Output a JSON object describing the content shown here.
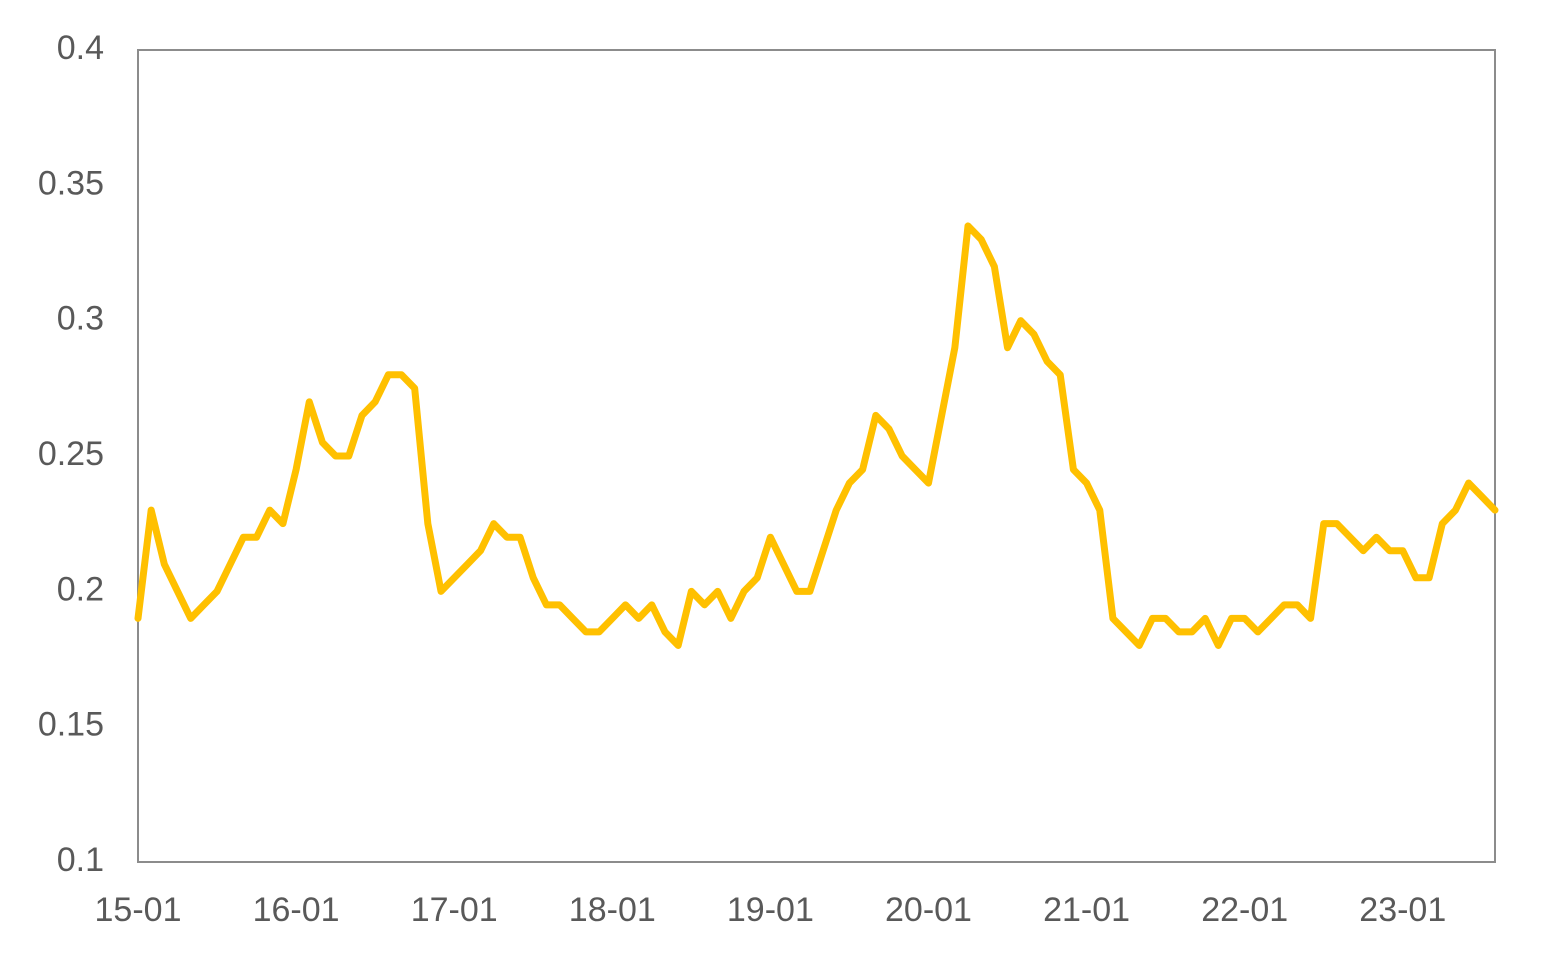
{
  "chart_data": {
    "type": "line",
    "categories": [
      "15-01",
      null,
      null,
      null,
      null,
      null,
      null,
      null,
      null,
      null,
      null,
      null,
      "16-01",
      null,
      null,
      null,
      null,
      null,
      null,
      null,
      null,
      null,
      null,
      null,
      "17-01",
      null,
      null,
      null,
      null,
      null,
      null,
      null,
      null,
      null,
      null,
      null,
      "18-01",
      null,
      null,
      null,
      null,
      null,
      null,
      null,
      null,
      null,
      null,
      null,
      "19-01",
      null,
      null,
      null,
      null,
      null,
      null,
      null,
      null,
      null,
      null,
      null,
      "20-01",
      null,
      null,
      null,
      null,
      null,
      null,
      null,
      null,
      null,
      null,
      null,
      "21-01",
      null,
      null,
      null,
      null,
      null,
      null,
      null,
      null,
      null,
      null,
      null,
      "22-01",
      null,
      null,
      null,
      null,
      null,
      null,
      null,
      null,
      null,
      null,
      null,
      "23-01",
      null,
      null,
      null,
      null,
      null,
      null,
      null
    ],
    "values": [
      0.19,
      0.23,
      0.21,
      0.2,
      0.19,
      0.195,
      0.2,
      0.21,
      0.22,
      0.22,
      0.23,
      0.225,
      0.245,
      0.27,
      0.255,
      0.25,
      0.25,
      0.265,
      0.27,
      0.28,
      0.28,
      0.275,
      0.225,
      0.2,
      0.205,
      0.21,
      0.215,
      0.225,
      0.22,
      0.22,
      0.205,
      0.195,
      0.195,
      0.19,
      0.185,
      0.185,
      0.19,
      0.195,
      0.19,
      0.195,
      0.185,
      0.18,
      0.2,
      0.195,
      0.2,
      0.19,
      0.2,
      0.205,
      0.22,
      0.21,
      0.2,
      0.2,
      0.215,
      0.23,
      0.24,
      0.245,
      0.265,
      0.26,
      0.25,
      0.245,
      0.24,
      0.265,
      0.29,
      0.335,
      0.33,
      0.32,
      0.29,
      0.3,
      0.295,
      0.285,
      0.28,
      0.245,
      0.24,
      0.23,
      0.19,
      0.185,
      0.18,
      0.19,
      0.19,
      0.185,
      0.185,
      0.19,
      0.18,
      0.19,
      0.19,
      0.185,
      0.19,
      0.195,
      0.195,
      0.19,
      0.225,
      0.225,
      0.22,
      0.215,
      0.22,
      0.215,
      0.215,
      0.205,
      0.205,
      0.225,
      0.23,
      0.24,
      0.235,
      0.23
    ],
    "color": "#FFC000",
    "ylim": [
      0.1,
      0.4
    ],
    "yticks": [
      0.1,
      0.15,
      0.2,
      0.25,
      0.3,
      0.35,
      0.4
    ],
    "grid": false
  }
}
